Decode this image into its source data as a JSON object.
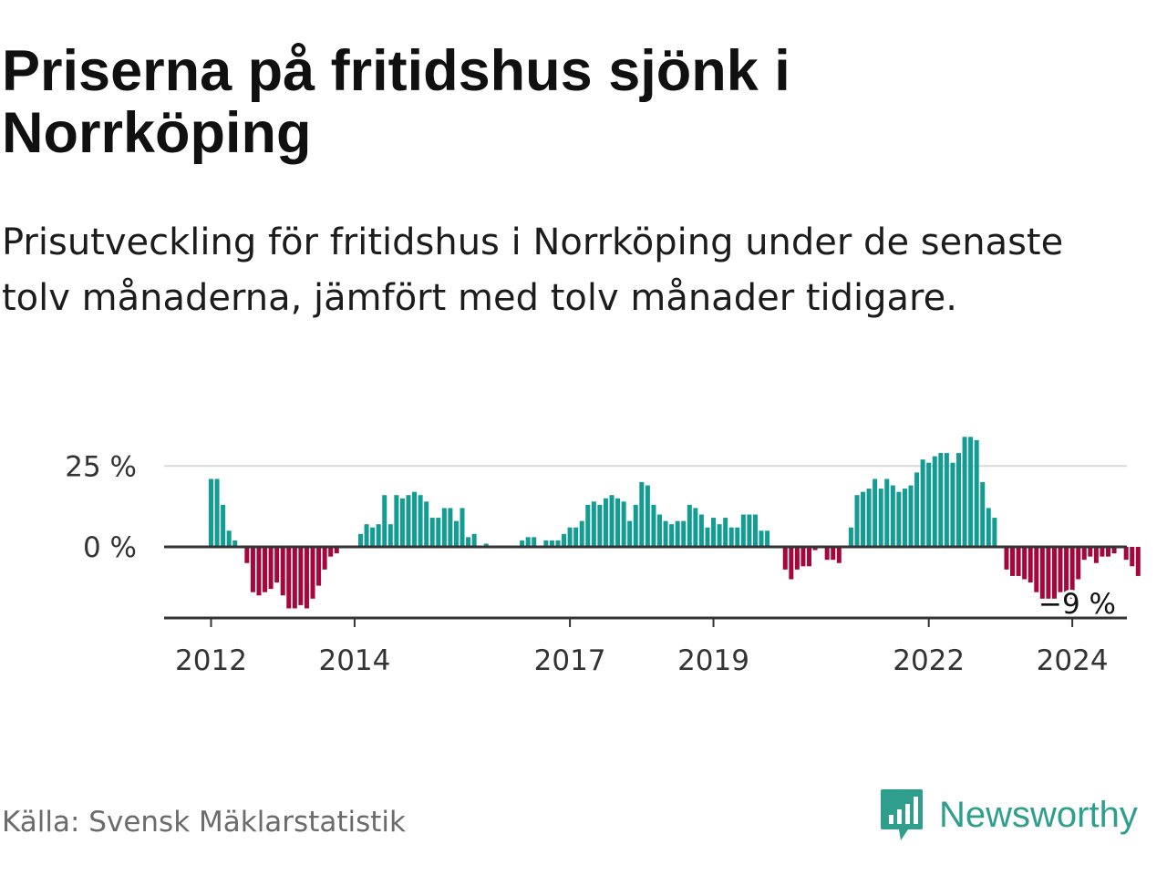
{
  "header": {
    "title": "Priserna på fritidshus sjönk i Norrköping",
    "subtitle": "Prisutveckling för fritidshus i Norrköping under de senaste tolv månaderna, jämfört med tolv månader tidigare."
  },
  "footer": {
    "source": "Källa: Svensk Mäklarstatistik",
    "brand": "Newsworthy"
  },
  "colors": {
    "positive": "#129c93",
    "negative": "#a5073d",
    "brand": "#2f9e8c"
  },
  "chart_data": {
    "type": "bar",
    "title": "Priserna på fritidshus sjönk i Norrköping",
    "xlabel": "",
    "ylabel": "",
    "start": "2012-01",
    "ylim": [
      -22,
      35
    ],
    "yticks": [
      0,
      25
    ],
    "ytick_labels": [
      "0 %",
      "25 %"
    ],
    "xtick_labels": [
      "2012",
      "2014",
      "2017",
      "2019",
      "2022",
      "2024"
    ],
    "last_label": "−9 %",
    "series": [
      {
        "name": "Prisutveckling (%)",
        "values": [
          21,
          21,
          13,
          5,
          2,
          null,
          -5,
          -14,
          -15,
          -14,
          -13,
          -11,
          -15,
          -19,
          -19,
          -18,
          -19,
          -16,
          -12,
          -7,
          -3,
          -2,
          null,
          null,
          null,
          4,
          7,
          6,
          7,
          16,
          7,
          16,
          15,
          16,
          17,
          16,
          14,
          9,
          9,
          12,
          12,
          8,
          12,
          3,
          4,
          null,
          1,
          null,
          null,
          null,
          null,
          null,
          2,
          3,
          3,
          0,
          2,
          2,
          2,
          4,
          6,
          6,
          8,
          13,
          14,
          13,
          15,
          16,
          15,
          14,
          8,
          13,
          20,
          19,
          13,
          10,
          8,
          7,
          8,
          8,
          13,
          12,
          10,
          6,
          9,
          7,
          9,
          6,
          6,
          10,
          10,
          10,
          5,
          5,
          null,
          null,
          -7,
          -10,
          -7,
          -6,
          -6,
          -1,
          null,
          -4,
          -4,
          -5,
          null,
          6,
          16,
          17,
          18,
          21,
          18,
          21,
          19,
          17,
          18,
          19,
          23,
          27,
          26,
          28,
          29,
          29,
          26,
          29,
          34,
          34,
          33,
          20,
          12,
          9,
          null,
          -7,
          -9,
          -9,
          -10,
          -11,
          -14,
          -16,
          -16,
          -16,
          -14,
          -15,
          -16,
          -10,
          -4,
          -3,
          -5,
          -3,
          -3,
          -2,
          null,
          -4,
          -6,
          -9
        ]
      }
    ]
  }
}
